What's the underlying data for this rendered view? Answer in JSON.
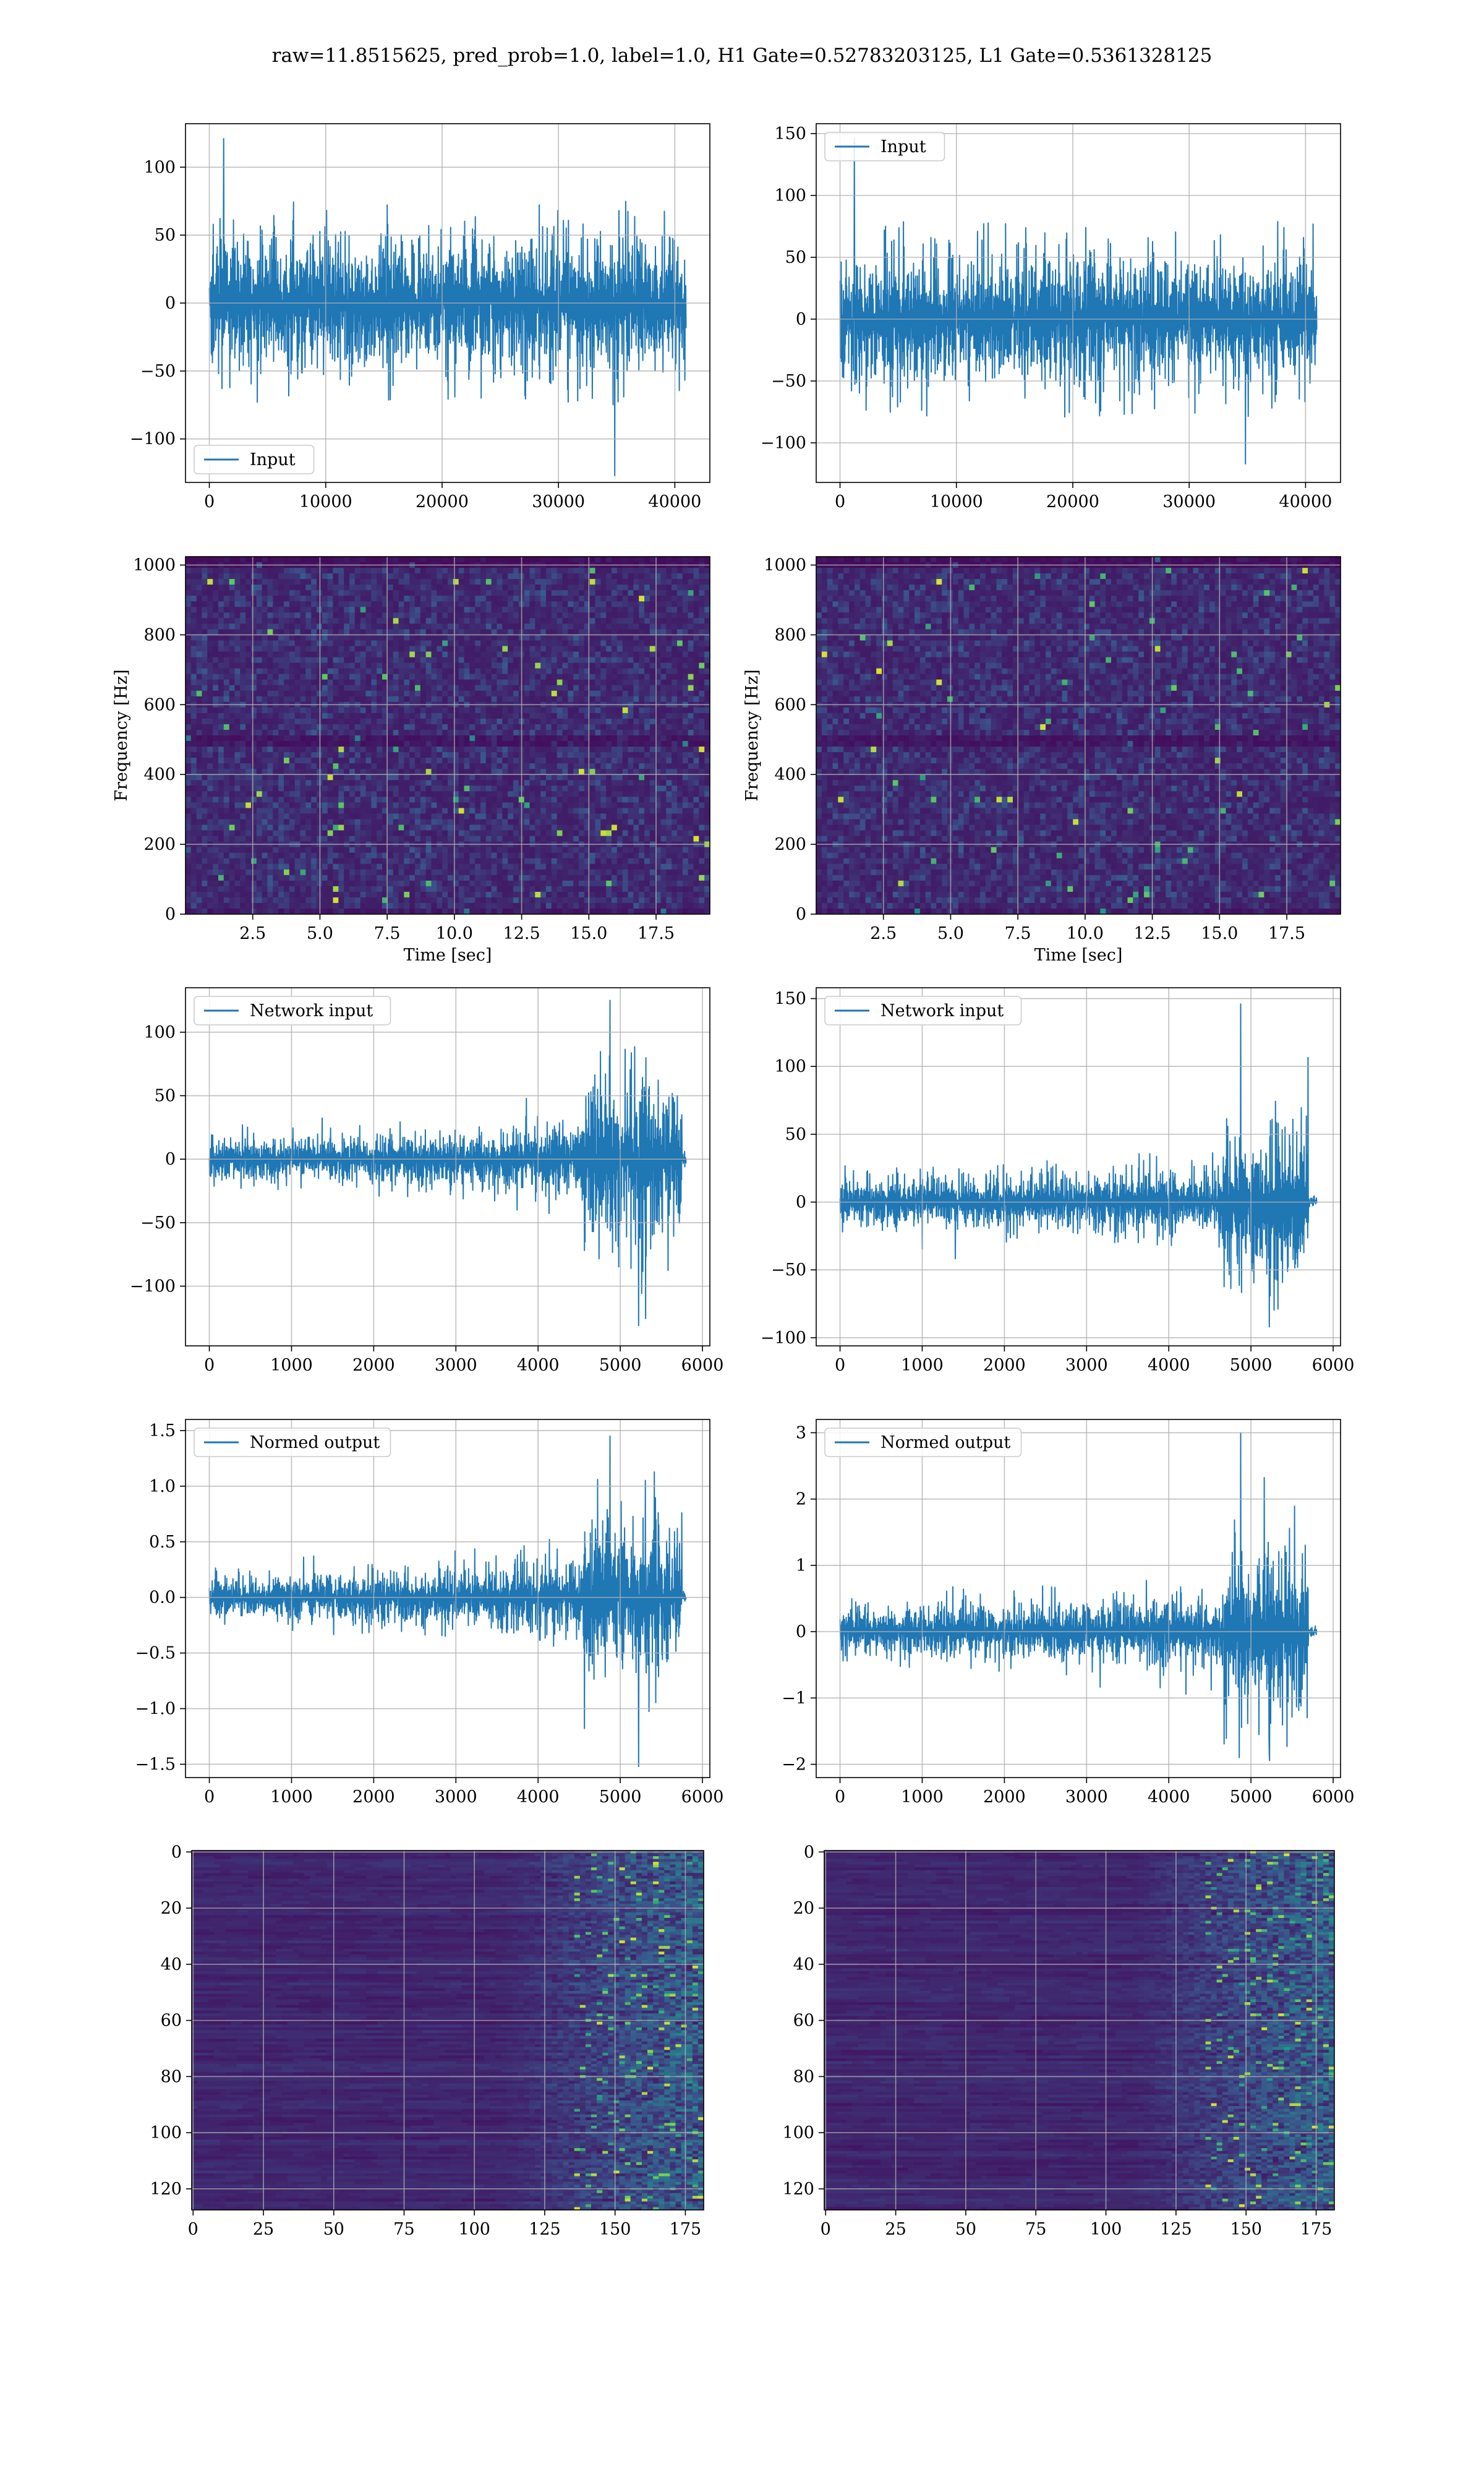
{
  "suptitle": "raw=11.8515625, pred_prob=1.0, label=1.0, H1 Gate=0.52783203125, L1 Gate=0.5361328125",
  "colors": {
    "line": "#1f77b4",
    "grid": "#b0b0b0",
    "cmap": [
      "#440154",
      "#3b528b",
      "#21918c",
      "#5ec962",
      "#fde725"
    ]
  },
  "chart_data": [
    {
      "id": "h1-input",
      "type": "line",
      "legend": "Input",
      "legend_loc": "lower-left",
      "xlim": [
        -2048,
        43008
      ],
      "ylim": [
        -132,
        132
      ],
      "xticks": [
        0,
        10000,
        20000,
        30000,
        40000
      ],
      "xtick_labels": [
        "0",
        "10000",
        "20000",
        "30000",
        "40000"
      ],
      "yticks": [
        -100,
        -50,
        0,
        50,
        100
      ],
      "ytick_labels": [
        "−100",
        "−50",
        "0",
        "50",
        "100"
      ],
      "grid": true,
      "signal": {
        "n": 40960,
        "base_amp": 50,
        "outer_amp": 75,
        "peak_max": 121,
        "peak_min": -127,
        "envelope": "stationary"
      }
    },
    {
      "id": "l1-input",
      "type": "line",
      "legend": "Input",
      "legend_loc": "upper-left",
      "xlim": [
        -2048,
        43008
      ],
      "ylim": [
        -132,
        158
      ],
      "xticks": [
        0,
        10000,
        20000,
        30000,
        40000
      ],
      "xtick_labels": [
        "0",
        "10000",
        "20000",
        "30000",
        "40000"
      ],
      "yticks": [
        -100,
        -50,
        0,
        50,
        100,
        150
      ],
      "ytick_labels": [
        "−100",
        "−50",
        "0",
        "50",
        "100",
        "150"
      ],
      "grid": true,
      "signal": {
        "n": 40960,
        "base_amp": 52,
        "outer_amp": 80,
        "peak_max": 146,
        "peak_min": -117,
        "envelope": "stationary"
      }
    },
    {
      "id": "h1-spectrogram",
      "type": "heatmap",
      "xlabel": "Time [sec]",
      "ylabel": "Frequency [Hz]",
      "xlim": [
        0,
        19.5
      ],
      "ylim": [
        0,
        1024
      ],
      "xticks": [
        2.5,
        5.0,
        7.5,
        10.0,
        12.5,
        15.0,
        17.5
      ],
      "xtick_labels": [
        "2.5",
        "5.0",
        "7.5",
        "10.0",
        "12.5",
        "15.0",
        "17.5"
      ],
      "yticks": [
        0,
        200,
        400,
        600,
        800,
        1000
      ],
      "ytick_labels": [
        "0",
        "200",
        "400",
        "600",
        "800",
        "1000"
      ],
      "grid": true,
      "colormap": "viridis",
      "seed": 11
    },
    {
      "id": "l1-spectrogram",
      "type": "heatmap",
      "xlabel": "Time [sec]",
      "ylabel": "Frequency [Hz]",
      "xlim": [
        0,
        19.5
      ],
      "ylim": [
        0,
        1024
      ],
      "xticks": [
        2.5,
        5.0,
        7.5,
        10.0,
        12.5,
        15.0,
        17.5
      ],
      "xtick_labels": [
        "2.5",
        "5.0",
        "7.5",
        "10.0",
        "12.5",
        "15.0",
        "17.5"
      ],
      "yticks": [
        0,
        200,
        400,
        600,
        800,
        1000
      ],
      "ytick_labels": [
        "0",
        "200",
        "400",
        "600",
        "800",
        "1000"
      ],
      "grid": true,
      "colormap": "viridis",
      "seed": 29
    },
    {
      "id": "h1-network-input",
      "type": "line",
      "legend": "Network input",
      "legend_loc": "upper-left",
      "xlim": [
        -290,
        6090
      ],
      "ylim": [
        -147,
        135
      ],
      "xticks": [
        0,
        1000,
        2000,
        3000,
        4000,
        5000,
        6000
      ],
      "xtick_labels": [
        "0",
        "1000",
        "2000",
        "3000",
        "4000",
        "5000",
        "6000"
      ],
      "yticks": [
        -100,
        -50,
        0,
        50,
        100
      ],
      "ytick_labels": [
        "−100",
        "−50",
        "0",
        "50",
        "100"
      ],
      "grid": true,
      "signal": {
        "n": 5800,
        "base_amp": 16,
        "ramp_amp": 28,
        "burst_start": 4550,
        "burst_end": 5750,
        "burst_amp": 62,
        "peak_max": 125,
        "peak_min": -131,
        "tail_amp": 4
      }
    },
    {
      "id": "l1-network-input",
      "type": "line",
      "legend": "Network input",
      "legend_loc": "upper-left",
      "xlim": [
        -290,
        6090
      ],
      "ylim": [
        -106,
        158
      ],
      "xticks": [
        0,
        1000,
        2000,
        3000,
        4000,
        5000,
        6000
      ],
      "xtick_labels": [
        "0",
        "1000",
        "2000",
        "3000",
        "4000",
        "5000",
        "6000"
      ],
      "yticks": [
        -100,
        -50,
        0,
        50,
        100,
        150
      ],
      "ytick_labels": [
        "−100",
        "−50",
        "0",
        "50",
        "100",
        "150"
      ],
      "grid": true,
      "signal": {
        "n": 5800,
        "base_amp": 18,
        "ramp_amp": 26,
        "burst_start": 4650,
        "burst_end": 5700,
        "burst_amp": 58,
        "peak_max": 146,
        "peak_min": -92,
        "tail_amp": 4
      }
    },
    {
      "id": "h1-normed-output",
      "type": "line",
      "legend": "Normed output",
      "legend_loc": "upper-left",
      "xlim": [
        -290,
        6090
      ],
      "ylim": [
        -1.62,
        1.6
      ],
      "xticks": [
        0,
        1000,
        2000,
        3000,
        4000,
        5000,
        6000
      ],
      "xtick_labels": [
        "0",
        "1000",
        "2000",
        "3000",
        "4000",
        "5000",
        "6000"
      ],
      "yticks": [
        -1.5,
        -1.0,
        -0.5,
        0.0,
        0.5,
        1.0,
        1.5
      ],
      "ytick_labels": [
        "−1.5",
        "−1.0",
        "−0.5",
        "0.0",
        "0.5",
        "1.0",
        "1.5"
      ],
      "grid": true,
      "signal": {
        "n": 5800,
        "base_amp": 0.19,
        "ramp_amp": 0.33,
        "burst_start": 4550,
        "burst_end": 5750,
        "burst_amp": 0.72,
        "peak_max": 1.45,
        "peak_min": -1.52,
        "tail_amp": 0.05
      }
    },
    {
      "id": "l1-normed-output",
      "type": "line",
      "legend": "Normed output",
      "legend_loc": "upper-left",
      "xlim": [
        -290,
        6090
      ],
      "ylim": [
        -2.2,
        3.2
      ],
      "xticks": [
        0,
        1000,
        2000,
        3000,
        4000,
        5000,
        6000
      ],
      "xtick_labels": [
        "0",
        "1000",
        "2000",
        "3000",
        "4000",
        "5000",
        "6000"
      ],
      "yticks": [
        -2,
        -1,
        0,
        1,
        2,
        3
      ],
      "ytick_labels": [
        "−2",
        "−1",
        "0",
        "1",
        "2",
        "3"
      ],
      "grid": true,
      "signal": {
        "n": 5800,
        "base_amp": 0.38,
        "ramp_amp": 0.55,
        "burst_start": 4650,
        "burst_end": 5700,
        "burst_amp": 1.2,
        "peak_max": 3.0,
        "peak_min": -1.85,
        "tail_amp": 0.06
      }
    },
    {
      "id": "h1-feature-map",
      "type": "heatmap",
      "xlim": [
        -0.5,
        181.5
      ],
      "ylim": [
        127.5,
        -0.5
      ],
      "xticks": [
        0,
        25,
        50,
        75,
        100,
        125,
        150,
        175
      ],
      "xtick_labels": [
        "0",
        "25",
        "50",
        "75",
        "100",
        "125",
        "150",
        "175"
      ],
      "yticks": [
        0,
        20,
        40,
        60,
        80,
        100,
        120
      ],
      "ytick_labels": [
        "0",
        "20",
        "40",
        "60",
        "80",
        "100",
        "120"
      ],
      "grid": true,
      "colormap": "viridis",
      "seed": 5
    },
    {
      "id": "l1-feature-map",
      "type": "heatmap",
      "xlim": [
        -0.5,
        181.5
      ],
      "ylim": [
        127.5,
        -0.5
      ],
      "xticks": [
        0,
        25,
        50,
        75,
        100,
        125,
        150,
        175
      ],
      "xtick_labels": [
        "0",
        "25",
        "50",
        "75",
        "100",
        "125",
        "150",
        "175"
      ],
      "yticks": [
        0,
        20,
        40,
        60,
        80,
        100,
        120
      ],
      "ytick_labels": [
        "0",
        "20",
        "40",
        "60",
        "80",
        "100",
        "120"
      ],
      "grid": true,
      "colormap": "viridis",
      "seed": 17
    }
  ]
}
